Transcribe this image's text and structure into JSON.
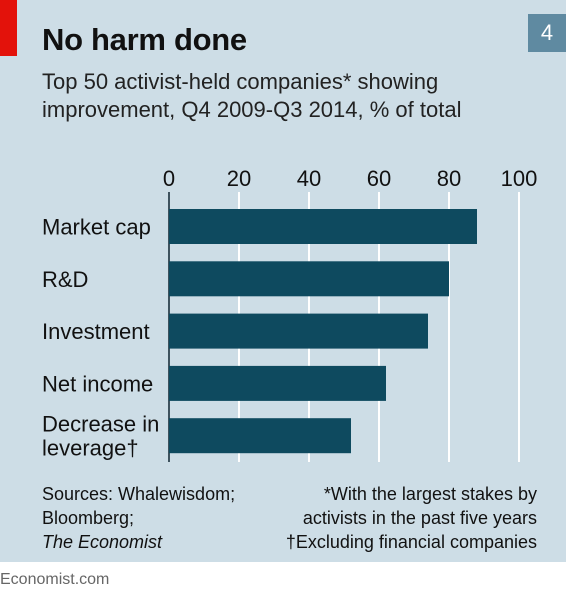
{
  "header": {
    "title": "No harm done",
    "badge": "4",
    "subtitle_line1": "Top 50 activist-held companies* showing",
    "subtitle_line2": "improvement, Q4 2009-Q3 2014, % of total"
  },
  "colors": {
    "background": "#cddde6",
    "bar": "#0e4a5f",
    "accent_red": "#e3120b",
    "badge": "#5f8aa1",
    "gridline": "#ffffff"
  },
  "chart_data": {
    "type": "bar",
    "orientation": "horizontal",
    "categories": [
      "Market cap",
      "R&D",
      "Investment",
      "Net income",
      "Decrease in leverage†"
    ],
    "category_lines": [
      [
        "Market cap"
      ],
      [
        "R&D"
      ],
      [
        "Investment"
      ],
      [
        "Net income"
      ],
      [
        "Decrease in",
        "leverage†"
      ]
    ],
    "values": [
      88,
      80,
      74,
      62,
      52
    ],
    "xlim": [
      0,
      100
    ],
    "xticks": [
      0,
      20,
      40,
      60,
      80,
      100
    ],
    "axis_position": "top",
    "grid": true
  },
  "footer": {
    "sources_line1": "Sources: Whalewisdom;",
    "sources_line2": "Bloomberg;",
    "sources_line3": "The Economist",
    "note_line1": "*With the largest stakes by",
    "note_line2": "activists in the past five years",
    "note_line3": "†Excluding financial companies",
    "credit": "Economist.com"
  }
}
